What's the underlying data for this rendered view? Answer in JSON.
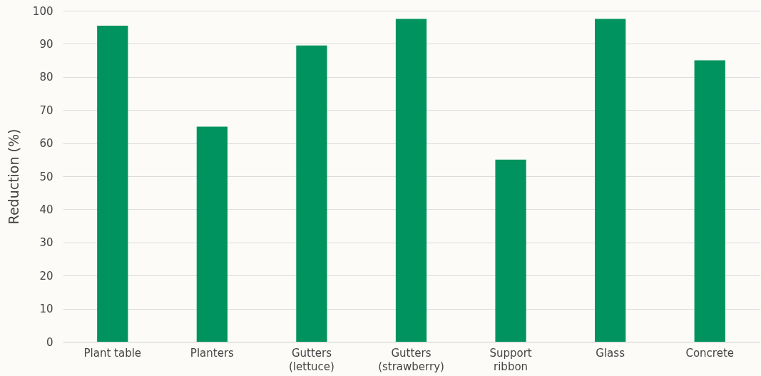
{
  "chart_data": {
    "type": "bar",
    "ylabel": "Reduction (%)",
    "categories": [
      "Plant table",
      "Planters",
      "Gutters (lettuce)",
      "Gutters (strawberry)",
      "Support ribbon",
      "Glass",
      "Concrete"
    ],
    "values": [
      95.5,
      65,
      89.5,
      97.5,
      55,
      97.5,
      85
    ],
    "color": "#00935f",
    "ylim": [
      0,
      100
    ],
    "yticks": [
      0,
      10,
      20,
      30,
      40,
      50,
      60,
      70,
      80,
      90,
      100
    ],
    "grid": "y"
  }
}
